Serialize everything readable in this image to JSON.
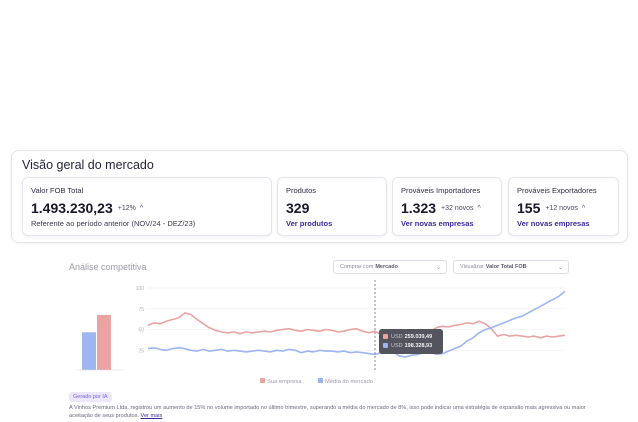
{
  "overview": {
    "title": "Visão geral do mercado",
    "cards": [
      {
        "label": "Valor FOB Total",
        "value": "1.493.230,23",
        "delta": "+12%",
        "foot": "Referente ao período anterior (NOV/24 - DEZ/23)"
      },
      {
        "label": "Produtos",
        "value": "329",
        "link": "Ver produtos"
      },
      {
        "label": "Prováveis Importadores",
        "value": "1.323",
        "delta": "+32 novos",
        "link": "Ver novas empresas"
      },
      {
        "label": "Prováveis Exportadores",
        "value": "155",
        "delta": "+12 novos",
        "link": "Ver novas empresas"
      }
    ]
  },
  "analysis": {
    "title": "Análise competitiva",
    "compare_select": {
      "prefix": "Comprar com",
      "value": "Mercado"
    },
    "view_select": {
      "prefix": "Visualizar",
      "value": "Valor Total FOB"
    },
    "tooltip": {
      "currency": "USD",
      "company_value": "259.039,49",
      "market_value": "198.328,93"
    },
    "badge": "Gerado por IA",
    "summary": "A Vinhos Premium Ltda. registrou um aumento de 15% no volume importado no último trimestre, superando a média do mercado de 8%, isso pode indicar uma estratégia de expansão mais agressiva ou maior aceitação de seus produtos.",
    "summary_link": "Ver mais"
  },
  "chart_data": {
    "type": "line",
    "yticks": [
      "100",
      "75",
      "50",
      "25"
    ],
    "ylim": [
      0,
      100
    ],
    "legend_placement": "bottom",
    "colors": {
      "company": "#e9a3a3",
      "market": "#9db6ef"
    },
    "series": [
      {
        "name": "Sua empresa",
        "values": [
          55,
          58,
          57,
          60,
          62,
          64,
          70,
          68,
          62,
          57,
          52,
          49,
          47,
          46,
          47,
          45,
          47,
          46,
          47,
          48,
          47,
          49,
          50,
          51,
          49,
          48,
          50,
          49,
          48,
          50,
          49,
          47,
          48,
          50,
          51,
          48,
          46,
          48,
          44,
          47,
          46,
          47,
          48,
          46,
          47,
          48,
          48,
          52,
          54,
          53,
          55,
          56,
          58,
          57,
          60,
          57,
          51,
          42,
          44,
          42,
          43,
          42,
          41,
          42,
          40,
          42,
          41,
          42,
          43
        ]
      },
      {
        "name": "Média do mercado",
        "values": [
          27,
          28,
          26,
          25,
          27,
          28,
          27,
          25,
          24,
          26,
          24,
          25,
          26,
          24,
          25,
          24,
          23,
          24,
          25,
          24,
          23,
          25,
          24,
          26,
          25,
          22,
          24,
          23,
          25,
          24,
          24,
          23,
          24,
          22,
          23,
          22,
          21,
          20,
          22,
          25,
          23,
          18,
          17,
          19,
          20,
          22,
          23,
          20,
          21,
          24,
          27,
          30,
          36,
          40,
          46,
          50,
          52,
          55,
          58,
          61,
          64,
          66,
          70,
          74,
          78,
          82,
          86,
          90,
          96
        ]
      }
    ],
    "bars": [
      {
        "name": "Média do mercado",
        "value": 26
      },
      {
        "name": "Sua empresa",
        "value": 38
      }
    ]
  }
}
